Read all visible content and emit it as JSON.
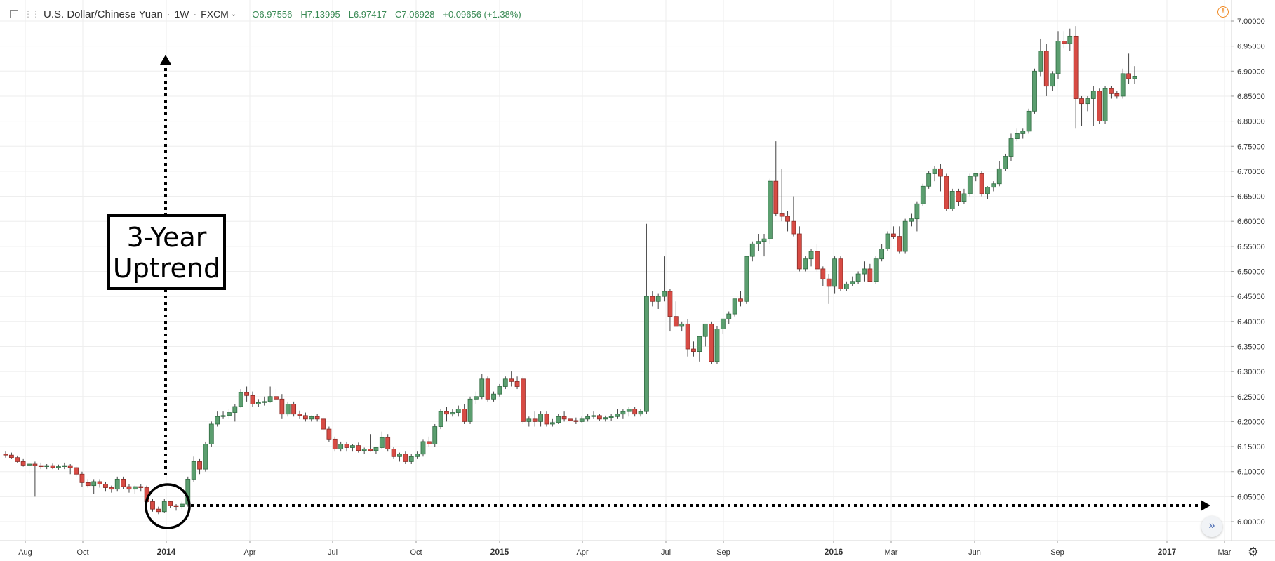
{
  "header": {
    "symbol": "U.S. Dollar/Chinese Yuan",
    "interval": "1W",
    "exchange": "FXCM",
    "ohlc": {
      "open": "O6.97556",
      "high": "H7.13995",
      "low": "L6.97417",
      "close": "C7.06928",
      "change": "+0.09656 (+1.38%)"
    }
  },
  "icons": {
    "collapse": "minus-square-icon",
    "drag": "drag-handle-icon",
    "caret": "chevron-down-icon",
    "warning": "warning-icon",
    "scroll": "double-chevron-right-icon",
    "settings": "gear-icon"
  },
  "annotation": {
    "text_line1": "3-Year",
    "text_line2": "Uptrend"
  },
  "colors": {
    "up": "#5b9e6f",
    "down": "#d74b44",
    "grid": "#eeeeee",
    "axis_text": "#333333",
    "ohlc_text": "#3a8a55"
  },
  "chart_data": {
    "type": "candlestick",
    "title": "",
    "xlabel": "",
    "ylabel": "",
    "ylim": [
      5.975,
      7.025
    ],
    "y_ticks": [
      "6.00000",
      "6.05000",
      "6.10000",
      "6.15000",
      "6.20000",
      "6.25000",
      "6.30000",
      "6.35000",
      "6.40000",
      "6.45000",
      "6.50000",
      "6.55000",
      "6.60000",
      "6.65000",
      "6.70000",
      "6.75000",
      "6.80000",
      "6.85000",
      "6.90000",
      "6.95000",
      "7.00000"
    ],
    "x_ticks": [
      "Aug",
      "Oct",
      "2014",
      "Apr",
      "Jul",
      "Oct",
      "2015",
      "Apr",
      "Jul",
      "Sep",
      "2016",
      "Mar",
      "Jun",
      "Sep",
      "2017",
      "Mar"
    ],
    "grid": true,
    "candles_ohlc": [
      [
        6.135,
        6.14,
        6.128,
        6.133
      ],
      [
        6.133,
        6.138,
        6.125,
        6.128
      ],
      [
        6.128,
        6.132,
        6.118,
        6.12
      ],
      [
        6.12,
        6.125,
        6.11,
        6.113
      ],
      [
        6.113,
        6.118,
        6.095,
        6.115
      ],
      [
        6.115,
        6.12,
        6.05,
        6.112
      ],
      [
        6.112,
        6.118,
        6.105,
        6.11
      ],
      [
        6.11,
        6.115,
        6.105,
        6.112
      ],
      [
        6.112,
        6.116,
        6.105,
        6.108
      ],
      [
        6.108,
        6.114,
        6.104,
        6.11
      ],
      [
        6.11,
        6.118,
        6.105,
        6.112
      ],
      [
        6.112,
        6.115,
        6.095,
        6.108
      ],
      [
        6.108,
        6.11,
        6.09,
        6.095
      ],
      [
        6.095,
        6.1,
        6.07,
        6.078
      ],
      [
        6.078,
        6.085,
        6.068,
        6.072
      ],
      [
        6.072,
        6.085,
        6.055,
        6.08
      ],
      [
        6.08,
        6.085,
        6.068,
        6.075
      ],
      [
        6.075,
        6.08,
        6.06,
        6.068
      ],
      [
        6.068,
        6.072,
        6.058,
        6.065
      ],
      [
        6.065,
        6.09,
        6.06,
        6.085
      ],
      [
        6.085,
        6.09,
        6.065,
        6.07
      ],
      [
        6.07,
        6.075,
        6.058,
        6.065
      ],
      [
        6.065,
        6.072,
        6.055,
        6.07
      ],
      [
        6.07,
        6.075,
        6.06,
        6.068
      ],
      [
        6.068,
        6.072,
        6.035,
        6.04
      ],
      [
        6.04,
        6.045,
        6.02,
        6.025
      ],
      [
        6.025,
        6.03,
        6.015,
        6.02
      ],
      [
        6.02,
        6.045,
        6.018,
        6.04
      ],
      [
        6.04,
        6.042,
        6.028,
        6.032
      ],
      [
        6.032,
        6.035,
        6.022,
        6.03
      ],
      [
        6.03,
        6.04,
        6.025,
        6.035
      ],
      [
        6.035,
        6.09,
        6.03,
        6.085
      ],
      [
        6.085,
        6.13,
        6.08,
        6.12
      ],
      [
        6.12,
        6.125,
        6.095,
        6.105
      ],
      [
        6.105,
        6.16,
        6.1,
        6.155
      ],
      [
        6.155,
        6.2,
        6.15,
        6.195
      ],
      [
        6.195,
        6.22,
        6.19,
        6.21
      ],
      [
        6.21,
        6.22,
        6.205,
        6.212
      ],
      [
        6.212,
        6.225,
        6.205,
        6.218
      ],
      [
        6.218,
        6.235,
        6.2,
        6.23
      ],
      [
        6.23,
        6.265,
        6.228,
        6.258
      ],
      [
        6.258,
        6.27,
        6.24,
        6.252
      ],
      [
        6.252,
        6.26,
        6.23,
        6.235
      ],
      [
        6.235,
        6.245,
        6.23,
        6.238
      ],
      [
        6.238,
        6.25,
        6.232,
        6.24
      ],
      [
        6.24,
        6.27,
        6.238,
        6.25
      ],
      [
        6.25,
        6.265,
        6.24,
        6.245
      ],
      [
        6.245,
        6.255,
        6.205,
        6.215
      ],
      [
        6.215,
        6.24,
        6.21,
        6.235
      ],
      [
        6.235,
        6.24,
        6.21,
        6.215
      ],
      [
        6.215,
        6.222,
        6.205,
        6.212
      ],
      [
        6.212,
        6.218,
        6.2,
        6.205
      ],
      [
        6.205,
        6.212,
        6.2,
        6.21
      ],
      [
        6.21,
        6.215,
        6.2,
        6.205
      ],
      [
        6.205,
        6.21,
        6.18,
        6.185
      ],
      [
        6.185,
        6.19,
        6.16,
        6.165
      ],
      [
        6.165,
        6.17,
        6.14,
        6.145
      ],
      [
        6.145,
        6.16,
        6.14,
        6.155
      ],
      [
        6.155,
        6.16,
        6.14,
        6.148
      ],
      [
        6.148,
        6.155,
        6.14,
        6.152
      ],
      [
        6.152,
        6.158,
        6.138,
        6.142
      ],
      [
        6.142,
        6.148,
        6.135,
        6.145
      ],
      [
        6.145,
        6.175,
        6.14,
        6.142
      ],
      [
        6.142,
        6.15,
        6.135,
        6.148
      ],
      [
        6.148,
        6.18,
        6.145,
        6.168
      ],
      [
        6.168,
        6.175,
        6.14,
        6.145
      ],
      [
        6.145,
        6.15,
        6.125,
        6.13
      ],
      [
        6.13,
        6.138,
        6.12,
        6.135
      ],
      [
        6.135,
        6.14,
        6.115,
        6.12
      ],
      [
        6.12,
        6.135,
        6.115,
        6.13
      ],
      [
        6.13,
        6.14,
        6.125,
        6.135
      ],
      [
        6.135,
        6.165,
        6.13,
        6.16
      ],
      [
        6.16,
        6.17,
        6.15,
        6.155
      ],
      [
        6.155,
        6.195,
        6.15,
        6.19
      ],
      [
        6.19,
        6.225,
        6.185,
        6.22
      ],
      [
        6.22,
        6.23,
        6.2,
        6.215
      ],
      [
        6.215,
        6.225,
        6.21,
        6.218
      ],
      [
        6.218,
        6.232,
        6.21,
        6.225
      ],
      [
        6.225,
        6.235,
        6.195,
        6.2
      ],
      [
        6.2,
        6.25,
        6.195,
        6.245
      ],
      [
        6.245,
        6.26,
        6.235,
        6.25
      ],
      [
        6.25,
        6.295,
        6.245,
        6.285
      ],
      [
        6.285,
        6.29,
        6.24,
        6.245
      ],
      [
        6.245,
        6.26,
        6.24,
        6.255
      ],
      [
        6.255,
        6.275,
        6.25,
        6.27
      ],
      [
        6.27,
        6.29,
        6.265,
        6.285
      ],
      [
        6.285,
        6.3,
        6.27,
        6.28
      ],
      [
        6.28,
        6.29,
        6.265,
        6.27
      ],
      [
        6.285,
        6.29,
        6.195,
        6.2
      ],
      [
        6.2,
        6.21,
        6.19,
        6.205
      ],
      [
        6.205,
        6.22,
        6.19,
        6.2
      ],
      [
        6.2,
        6.22,
        6.19,
        6.215
      ],
      [
        6.215,
        6.22,
        6.19,
        6.195
      ],
      [
        6.195,
        6.205,
        6.19,
        6.198
      ],
      [
        6.198,
        6.215,
        6.195,
        6.21
      ],
      [
        6.21,
        6.22,
        6.2,
        6.205
      ],
      [
        6.205,
        6.212,
        6.198,
        6.202
      ],
      [
        6.202,
        6.208,
        6.195,
        6.2
      ],
      [
        6.2,
        6.21,
        6.198,
        6.205
      ],
      [
        6.205,
        6.215,
        6.2,
        6.21
      ],
      [
        6.21,
        6.22,
        6.205,
        6.212
      ],
      [
        6.212,
        6.215,
        6.202,
        6.205
      ],
      [
        6.205,
        6.212,
        6.2,
        6.208
      ],
      [
        6.208,
        6.215,
        6.202,
        6.21
      ],
      [
        6.21,
        6.225,
        6.205,
        6.215
      ],
      [
        6.215,
        6.225,
        6.205,
        6.22
      ],
      [
        6.22,
        6.23,
        6.21,
        6.225
      ],
      [
        6.225,
        6.23,
        6.21,
        6.215
      ],
      [
        6.215,
        6.225,
        6.21,
        6.22
      ],
      [
        6.22,
        6.595,
        6.215,
        6.45
      ],
      [
        6.45,
        6.46,
        6.43,
        6.44
      ],
      [
        6.44,
        6.455,
        6.425,
        6.45
      ],
      [
        6.45,
        6.53,
        6.44,
        6.46
      ],
      [
        6.46,
        6.465,
        6.38,
        6.41
      ],
      [
        6.41,
        6.44,
        6.395,
        6.39
      ],
      [
        6.39,
        6.4,
        6.38,
        6.395
      ],
      [
        6.395,
        6.405,
        6.33,
        6.345
      ],
      [
        6.345,
        6.36,
        6.33,
        6.34
      ],
      [
        6.34,
        6.35,
        6.32,
        6.37
      ],
      [
        6.37,
        6.39,
        6.35,
        6.395
      ],
      [
        6.395,
        6.4,
        6.315,
        6.32
      ],
      [
        6.32,
        6.39,
        6.315,
        6.385
      ],
      [
        6.385,
        6.4,
        6.375,
        6.405
      ],
      [
        6.405,
        6.42,
        6.395,
        6.415
      ],
      [
        6.415,
        6.445,
        6.41,
        6.445
      ],
      [
        6.445,
        6.46,
        6.43,
        6.44
      ],
      [
        6.44,
        6.53,
        6.435,
        6.53
      ],
      [
        6.53,
        6.56,
        6.52,
        6.555
      ],
      [
        6.555,
        6.575,
        6.54,
        6.56
      ],
      [
        6.56,
        6.575,
        6.53,
        6.565
      ],
      [
        6.565,
        6.685,
        6.555,
        6.68
      ],
      [
        6.68,
        6.76,
        6.61,
        6.615
      ],
      [
        6.615,
        6.705,
        6.6,
        6.61
      ],
      [
        6.61,
        6.62,
        6.58,
        6.6
      ],
      [
        6.6,
        6.65,
        6.57,
        6.575
      ],
      [
        6.575,
        6.59,
        6.5,
        6.505
      ],
      [
        6.505,
        6.53,
        6.5,
        6.525
      ],
      [
        6.525,
        6.545,
        6.51,
        6.54
      ],
      [
        6.54,
        6.555,
        6.5,
        6.505
      ],
      [
        6.505,
        6.51,
        6.47,
        6.485
      ],
      [
        6.485,
        6.495,
        6.435,
        6.47
      ],
      [
        6.47,
        6.53,
        6.455,
        6.525
      ],
      [
        6.525,
        6.53,
        6.46,
        6.465
      ],
      [
        6.465,
        6.48,
        6.46,
        6.475
      ],
      [
        6.475,
        6.49,
        6.47,
        6.48
      ],
      [
        6.48,
        6.5,
        6.475,
        6.495
      ],
      [
        6.495,
        6.52,
        6.48,
        6.505
      ],
      [
        6.505,
        6.515,
        6.485,
        6.48
      ],
      [
        6.48,
        6.53,
        6.475,
        6.525
      ],
      [
        6.525,
        6.555,
        6.52,
        6.545
      ],
      [
        6.545,
        6.58,
        6.54,
        6.575
      ],
      [
        6.575,
        6.59,
        6.565,
        6.57
      ],
      [
        6.57,
        6.59,
        6.535,
        6.54
      ],
      [
        6.54,
        6.605,
        6.535,
        6.6
      ],
      [
        6.6,
        6.615,
        6.59,
        6.605
      ],
      [
        6.605,
        6.64,
        6.58,
        6.635
      ],
      [
        6.635,
        6.675,
        6.63,
        6.67
      ],
      [
        6.67,
        6.7,
        6.665,
        6.695
      ],
      [
        6.695,
        6.71,
        6.68,
        6.705
      ],
      [
        6.705,
        6.715,
        6.66,
        6.69
      ],
      [
        6.69,
        6.695,
        6.62,
        6.625
      ],
      [
        6.625,
        6.665,
        6.62,
        6.66
      ],
      [
        6.66,
        6.665,
        6.63,
        6.64
      ],
      [
        6.64,
        6.665,
        6.635,
        6.655
      ],
      [
        6.655,
        6.695,
        6.65,
        6.69
      ],
      [
        6.69,
        6.695,
        6.68,
        6.695
      ],
      [
        6.695,
        6.7,
        6.65,
        6.655
      ],
      [
        6.655,
        6.67,
        6.645,
        6.668
      ],
      [
        6.668,
        6.68,
        6.66,
        6.675
      ],
      [
        6.675,
        6.72,
        6.67,
        6.705
      ],
      [
        6.705,
        6.735,
        6.7,
        6.73
      ],
      [
        6.73,
        6.775,
        6.72,
        6.765
      ],
      [
        6.765,
        6.785,
        6.76,
        6.775
      ],
      [
        6.775,
        6.785,
        6.765,
        6.78
      ],
      [
        6.78,
        6.825,
        6.775,
        6.82
      ],
      [
        6.82,
        6.905,
        6.815,
        6.9
      ],
      [
        6.9,
        6.965,
        6.89,
        6.94
      ],
      [
        6.94,
        6.955,
        6.85,
        6.87
      ],
      [
        6.87,
        6.9,
        6.86,
        6.895
      ],
      [
        6.895,
        6.98,
        6.885,
        6.96
      ],
      [
        6.96,
        6.98,
        6.945,
        6.955
      ],
      [
        6.955,
        6.985,
        6.94,
        6.97
      ],
      [
        6.97,
        6.99,
        6.785,
        6.845
      ],
      [
        6.845,
        6.85,
        6.79,
        6.835
      ],
      [
        6.835,
        6.85,
        6.82,
        6.845
      ],
      [
        6.845,
        6.87,
        6.79,
        6.86
      ],
      [
        6.86,
        6.865,
        6.795,
        6.8
      ],
      [
        6.8,
        6.87,
        6.795,
        6.865
      ],
      [
        6.865,
        6.87,
        6.845,
        6.855
      ],
      [
        6.855,
        6.86,
        6.845,
        6.85
      ],
      [
        6.85,
        6.905,
        6.845,
        6.895
      ],
      [
        6.895,
        6.935,
        6.875,
        6.885
      ],
      [
        6.885,
        6.91,
        6.875,
        6.89
      ]
    ]
  }
}
